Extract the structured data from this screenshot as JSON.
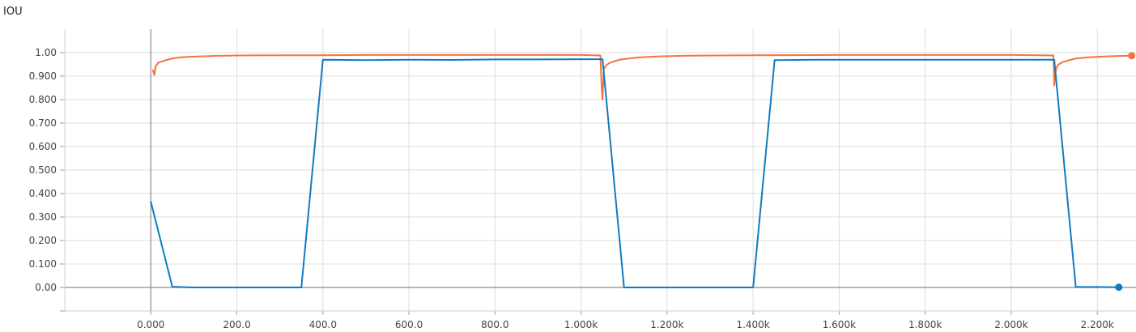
{
  "chart_data": {
    "type": "line",
    "title": "IOU",
    "xlabel": "",
    "ylabel": "",
    "xlim": [
      -200,
      2290
    ],
    "ylim": [
      -0.1,
      1.1
    ],
    "grid": true,
    "x_ticks": [
      {
        "value": 0,
        "label": "0.000"
      },
      {
        "value": 200,
        "label": "200.0"
      },
      {
        "value": 400,
        "label": "400.0"
      },
      {
        "value": 600,
        "label": "600.0"
      },
      {
        "value": 800,
        "label": "800.0"
      },
      {
        "value": 1000,
        "label": "1.000k"
      },
      {
        "value": 1200,
        "label": "1.200k"
      },
      {
        "value": 1400,
        "label": "1.400k"
      },
      {
        "value": 1600,
        "label": "1.600k"
      },
      {
        "value": 1800,
        "label": "1.800k"
      },
      {
        "value": 2000,
        "label": "2.000k"
      },
      {
        "value": 2200,
        "label": "2.200k"
      }
    ],
    "y_ticks": [
      {
        "value": 0.0,
        "label": "0.00"
      },
      {
        "value": 0.1,
        "label": "0.100"
      },
      {
        "value": 0.2,
        "label": "0.200"
      },
      {
        "value": 0.3,
        "label": "0.300"
      },
      {
        "value": 0.4,
        "label": "0.400"
      },
      {
        "value": 0.5,
        "label": "0.500"
      },
      {
        "value": 0.6,
        "label": "0.600"
      },
      {
        "value": 0.7,
        "label": "0.700"
      },
      {
        "value": 0.8,
        "label": "0.800"
      },
      {
        "value": 0.9,
        "label": "0.900"
      },
      {
        "value": 1.0,
        "label": "1.00"
      }
    ],
    "series": [
      {
        "color": "#f4733f",
        "end_marker": true,
        "x": [
          5,
          8,
          12,
          18,
          25,
          35,
          50,
          70,
          100,
          150,
          200,
          300,
          400,
          500,
          600,
          700,
          800,
          900,
          1000,
          1045,
          1048,
          1050,
          1053,
          1058,
          1065,
          1075,
          1090,
          1110,
          1140,
          1180,
          1250,
          1400,
          1600,
          1800,
          2000,
          2098,
          2100,
          2102,
          2105,
          2110,
          2120,
          2135,
          2150,
          2180,
          2220,
          2260,
          2280
        ],
        "y": [
          0.925,
          0.905,
          0.945,
          0.958,
          0.962,
          0.968,
          0.975,
          0.98,
          0.983,
          0.986,
          0.988,
          0.989,
          0.989,
          0.99,
          0.99,
          0.99,
          0.99,
          0.99,
          0.99,
          0.988,
          0.85,
          0.8,
          0.93,
          0.945,
          0.955,
          0.962,
          0.97,
          0.975,
          0.98,
          0.984,
          0.987,
          0.989,
          0.99,
          0.99,
          0.99,
          0.988,
          0.86,
          0.91,
          0.935,
          0.95,
          0.96,
          0.968,
          0.975,
          0.98,
          0.984,
          0.986,
          0.987
        ]
      },
      {
        "color": "#0f7cbf",
        "end_marker": true,
        "x": [
          0,
          50,
          100,
          200,
          300,
          350,
          400,
          500,
          600,
          700,
          800,
          900,
          1000,
          1050,
          1100,
          1200,
          1300,
          1400,
          1450,
          1550,
          1650,
          1750,
          1850,
          1950,
          2050,
          2100,
          2150,
          2200,
          2250
        ],
        "y": [
          0.365,
          0.003,
          0.0,
          0.0,
          0.0,
          0.0,
          0.97,
          0.968,
          0.97,
          0.969,
          0.971,
          0.971,
          0.972,
          0.972,
          0.0,
          0.0,
          0.0,
          0.0,
          0.968,
          0.97,
          0.97,
          0.97,
          0.97,
          0.97,
          0.97,
          0.97,
          0.002,
          0.002,
          0.001
        ]
      }
    ]
  }
}
